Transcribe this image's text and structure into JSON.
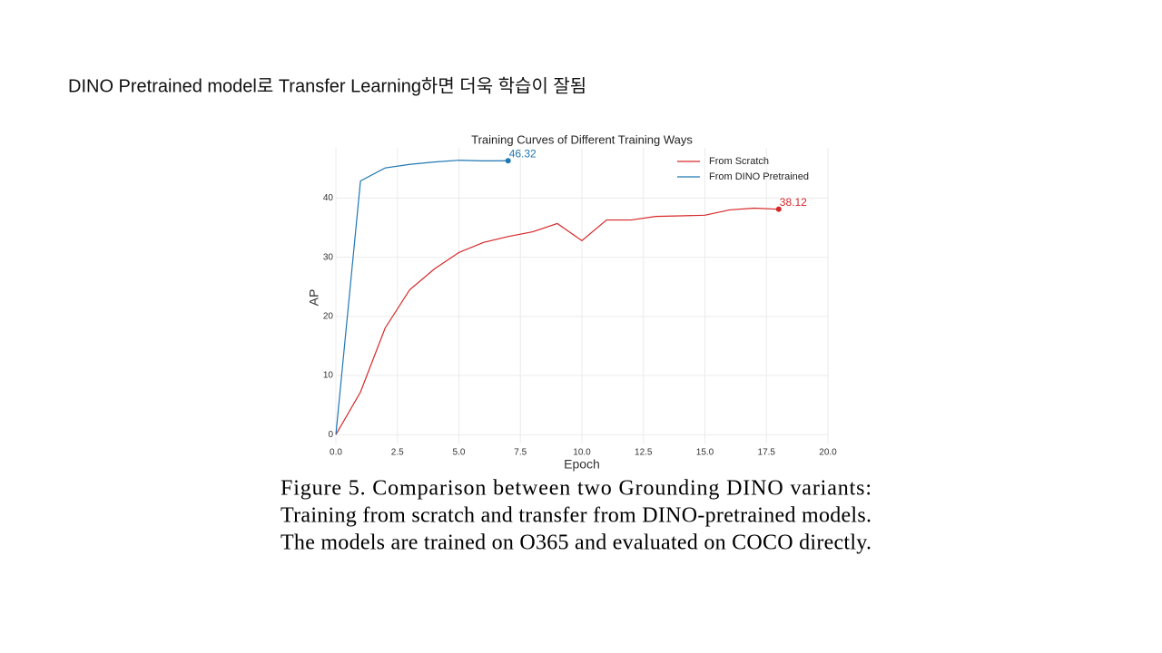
{
  "slide_title": "DINO Pretrained model로 Transfer Learning하면 더욱 학습이 잘됨",
  "chart_data": {
    "type": "line",
    "title": "Training Curves of Different Training Ways",
    "x_label": "Epoch",
    "y_label": "AP",
    "xlim": [
      0,
      20
    ],
    "ylim": [
      -1.5,
      48.5
    ],
    "xticks": [
      {
        "value": 0,
        "label": "0.0"
      },
      2.5,
      {
        "value": 5,
        "label": "5.0"
      },
      7.5,
      {
        "value": 10,
        "label": "10.0"
      },
      12.5,
      {
        "value": 15,
        "label": "15.0"
      },
      17.5,
      {
        "value": 20,
        "label": "20.0"
      }
    ],
    "yticks": [
      0,
      10,
      20,
      30,
      40
    ],
    "grid": true,
    "legend": "top-right",
    "series": [
      {
        "name": "From Scratch",
        "color": "#d62728",
        "x": [
          0,
          1,
          2,
          3,
          4,
          5,
          6,
          7,
          8,
          9,
          10,
          11,
          12,
          13,
          14,
          15,
          16,
          17,
          18
        ],
        "values": [
          0,
          7.2,
          18,
          24.5,
          28,
          30.8,
          32.5,
          33.5,
          34.3,
          35.7,
          32.8,
          36.3,
          36.3,
          36.9,
          37,
          37.1,
          38,
          38.3,
          38.12
        ]
      },
      {
        "name": "From DINO Pretrained",
        "color": "#1f77b4",
        "x": [
          0,
          1,
          2,
          3,
          4,
          5,
          6,
          7
        ],
        "values": [
          0,
          42.9,
          45.1,
          45.7,
          46.1,
          46.4,
          46.3,
          46.32
        ]
      }
    ]
  },
  "caption": [
    "Figure 5.  Comparison between two Grounding DINO variants:",
    "Training from scratch and transfer from DINO-pretrained models.",
    "The models are trained on O365 and evaluated on COCO directly."
  ]
}
